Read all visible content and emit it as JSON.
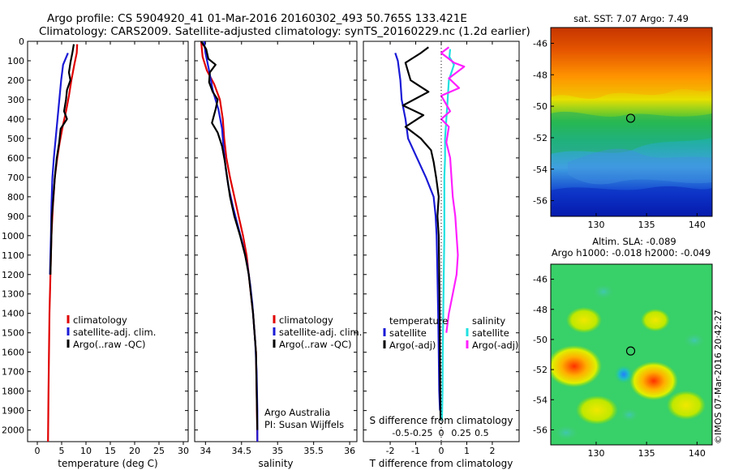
{
  "header": {
    "line1": "Argo profile: CS 5904920_41 01-Mar-2016 20160302_493 50.765S 133.421E",
    "line2": "Climatology: CARS2009. Satellite-adjusted climatology: synTS_20160229.nc (1.2d earlier)"
  },
  "credit": "©IMOS 07-Mar-2016 20:42:27",
  "colors": {
    "climatology": "#e00000",
    "satellite": "#1a1ad6",
    "argo": "#000000",
    "satellite_s": "#20e0e0",
    "argo_s": "#ff20ff"
  },
  "chart_data": [
    {
      "type": "line",
      "id": "temperature",
      "xlabel": "temperature (deg C)",
      "ylabel": "",
      "xlim": [
        -2,
        31
      ],
      "ylim": [
        2060,
        0
      ],
      "xticks": [
        0,
        5,
        10,
        15,
        20,
        25,
        30
      ],
      "yticks": [
        0,
        100,
        200,
        300,
        400,
        500,
        600,
        700,
        800,
        900,
        1000,
        1100,
        1200,
        1300,
        1400,
        1500,
        1600,
        1700,
        1800,
        1900,
        2000
      ],
      "legend": [
        "climatology",
        "satellite-adj. clim.",
        "Argo(..raw -QC)"
      ],
      "series": [
        {
          "name": "climatology",
          "color": "#e00000",
          "points": [
            [
              8.2,
              15
            ],
            [
              8.1,
              60
            ],
            [
              7.6,
              120
            ],
            [
              7.0,
              200
            ],
            [
              6.5,
              280
            ],
            [
              5.9,
              360
            ],
            [
              5.2,
              440
            ],
            [
              4.6,
              520
            ],
            [
              4.1,
              600
            ],
            [
              3.6,
              700
            ],
            [
              3.2,
              850
            ],
            [
              2.9,
              1000
            ],
            [
              2.7,
              1200
            ],
            [
              2.5,
              1400
            ],
            [
              2.4,
              1600
            ],
            [
              2.3,
              1800
            ],
            [
              2.2,
              2060
            ]
          ]
        },
        {
          "name": "satellite-adj. clim.",
          "color": "#1a1ad6",
          "points": [
            [
              6.3,
              60
            ],
            [
              5.3,
              120
            ],
            [
              4.9,
              200
            ],
            [
              4.6,
              280
            ],
            [
              4.3,
              360
            ],
            [
              4.0,
              440
            ],
            [
              3.7,
              520
            ],
            [
              3.4,
              600
            ],
            [
              3.1,
              700
            ],
            [
              2.9,
              850
            ],
            [
              2.8,
              1000
            ],
            [
              2.6,
              1200
            ]
          ]
        },
        {
          "name": "Argo(..raw -QC)",
          "color": "#000000",
          "points": [
            [
              7.5,
              15
            ],
            [
              7.2,
              60
            ],
            [
              6.8,
              110
            ],
            [
              6.5,
              160
            ],
            [
              6.8,
              200
            ],
            [
              6.1,
              250
            ],
            [
              5.9,
              300
            ],
            [
              5.5,
              360
            ],
            [
              6.1,
              400
            ],
            [
              4.8,
              450
            ],
            [
              4.5,
              520
            ],
            [
              4.0,
              600
            ],
            [
              3.6,
              700
            ],
            [
              3.3,
              800
            ],
            [
              3.0,
              900
            ],
            [
              2.9,
              1000
            ],
            [
              2.8,
              1100
            ],
            [
              2.7,
              1200
            ]
          ]
        }
      ]
    },
    {
      "type": "line",
      "id": "salinity",
      "xlabel": "salinity",
      "ylabel": "",
      "xlim": [
        33.85,
        36.1
      ],
      "ylim": [
        2060,
        0
      ],
      "xticks": [
        34,
        34.5,
        35,
        35.5,
        36
      ],
      "xticklabels": [
        "34",
        "34.5",
        "35",
        "35.5",
        "36"
      ],
      "legend": [
        "climatology",
        "satellite-adj. clim.",
        "Argo(..raw -QC)"
      ],
      "annotations": [
        "Argo Australia",
        "PI: Susan Wijffels"
      ],
      "series": [
        {
          "name": "climatology",
          "color": "#e00000",
          "points": [
            [
              33.94,
              0
            ],
            [
              33.96,
              80
            ],
            [
              34.02,
              150
            ],
            [
              34.12,
              220
            ],
            [
              34.2,
              300
            ],
            [
              34.24,
              400
            ],
            [
              34.26,
              500
            ],
            [
              34.29,
              600
            ],
            [
              34.34,
              700
            ],
            [
              34.4,
              800
            ],
            [
              34.46,
              900
            ],
            [
              34.52,
              1000
            ],
            [
              34.57,
              1100
            ],
            [
              34.6,
              1200
            ],
            [
              34.63,
              1300
            ],
            [
              34.66,
              1400
            ],
            [
              34.68,
              1500
            ],
            [
              34.7,
              1600
            ],
            [
              34.71,
              1800
            ],
            [
              34.72,
              2060
            ]
          ]
        },
        {
          "name": "satellite-adj. clim.",
          "color": "#1a1ad6",
          "points": [
            [
              33.98,
              0
            ],
            [
              34.0,
              60
            ],
            [
              34.05,
              150
            ],
            [
              34.1,
              250
            ],
            [
              34.18,
              350
            ],
            [
              34.23,
              450
            ],
            [
              34.25,
              550
            ],
            [
              34.28,
              650
            ],
            [
              34.32,
              750
            ],
            [
              34.38,
              850
            ],
            [
              34.45,
              950
            ],
            [
              34.52,
              1050
            ],
            [
              34.58,
              1150
            ],
            [
              34.62,
              1250
            ],
            [
              34.65,
              1350
            ],
            [
              34.67,
              1450
            ],
            [
              34.69,
              1550
            ],
            [
              34.71,
              1700
            ],
            [
              34.72,
              1900
            ],
            [
              34.72,
              2060
            ]
          ]
        },
        {
          "name": "Argo(..raw -QC)",
          "color": "#000000",
          "points": [
            [
              33.94,
              0
            ],
            [
              34.01,
              40
            ],
            [
              34.04,
              90
            ],
            [
              34.14,
              120
            ],
            [
              34.06,
              160
            ],
            [
              34.05,
              210
            ],
            [
              34.1,
              260
            ],
            [
              34.17,
              300
            ],
            [
              34.14,
              350
            ],
            [
              34.09,
              420
            ],
            [
              34.17,
              470
            ],
            [
              34.23,
              540
            ],
            [
              34.27,
              620
            ],
            [
              34.3,
              700
            ],
            [
              34.34,
              800
            ],
            [
              34.4,
              900
            ],
            [
              34.48,
              1000
            ],
            [
              34.55,
              1100
            ],
            [
              34.6,
              1200
            ],
            [
              34.63,
              1300
            ],
            [
              34.66,
              1400
            ],
            [
              34.68,
              1500
            ],
            [
              34.7,
              1600
            ],
            [
              34.71,
              1800
            ],
            [
              34.72,
              2000
            ]
          ]
        }
      ]
    },
    {
      "type": "line",
      "id": "difference",
      "xlabel": "T difference from climatology",
      "xlabel_top": "S difference from climatology",
      "xlim": [
        -3.05,
        3.05
      ],
      "ylim": [
        2060,
        0
      ],
      "xticks": [
        -2,
        -1,
        0,
        1,
        2
      ],
      "top_ticks": [
        "-0.5",
        "-0.25",
        "0",
        "0.25",
        "0.5"
      ],
      "legend_t": {
        "title": "temperature",
        "items": [
          "satellite",
          "Argo(-adj)"
        ]
      },
      "legend_s": {
        "title": "salinity",
        "items": [
          "satellite",
          "Argo(-adj)"
        ]
      },
      "series": [
        {
          "name": "temperature satellite",
          "color": "#1a1ad6",
          "points": [
            [
              -1.8,
              60
            ],
            [
              -1.7,
              100
            ],
            [
              -1.6,
              200
            ],
            [
              -1.55,
              300
            ],
            [
              -1.4,
              400
            ],
            [
              -1.3,
              500
            ],
            [
              -0.95,
              600
            ],
            [
              -0.6,
              700
            ],
            [
              -0.3,
              800
            ],
            [
              -0.22,
              900
            ],
            [
              -0.18,
              1000
            ],
            [
              -0.15,
              1200
            ],
            [
              -0.12,
              1400
            ],
            [
              -0.1,
              1600
            ],
            [
              -0.08,
              1800
            ],
            [
              -0.05,
              1900
            ]
          ]
        },
        {
          "name": "temperature Argo(-adj)",
          "color": "#000000",
          "points": [
            [
              -0.5,
              30
            ],
            [
              -0.8,
              60
            ],
            [
              -1.4,
              110
            ],
            [
              -1.2,
              200
            ],
            [
              -0.5,
              260
            ],
            [
              -1.5,
              330
            ],
            [
              -0.7,
              380
            ],
            [
              -1.4,
              440
            ],
            [
              -0.8,
              500
            ],
            [
              -0.4,
              560
            ],
            [
              -0.3,
              620
            ],
            [
              -0.2,
              700
            ],
            [
              -0.1,
              800
            ],
            [
              -0.15,
              900
            ],
            [
              -0.1,
              1000
            ],
            [
              -0.08,
              1200
            ],
            [
              -0.06,
              1400
            ],
            [
              -0.05,
              1600
            ],
            [
              -0.04,
              1800
            ],
            [
              -0.03,
              1950
            ]
          ]
        },
        {
          "name": "salinity satellite",
          "color": "#20e0e0",
          "points": [
            [
              0.35,
              40
            ],
            [
              0.32,
              80
            ],
            [
              0.5,
              120
            ],
            [
              0.3,
              200
            ],
            [
              0.25,
              300
            ],
            [
              0.2,
              400
            ],
            [
              0.15,
              500
            ],
            [
              0.15,
              600
            ],
            [
              0.12,
              700
            ],
            [
              0.12,
              800
            ],
            [
              0.12,
              900
            ],
            [
              0.12,
              1000
            ],
            [
              0.1,
              1200
            ],
            [
              0.08,
              1400
            ],
            [
              0.06,
              1600
            ],
            [
              0.05,
              1800
            ],
            [
              0.03,
              1950
            ]
          ]
        },
        {
          "name": "salinity Argo(-adj)",
          "color": "#ff20ff",
          "points": [
            [
              0.3,
              30
            ],
            [
              0.0,
              60
            ],
            [
              0.5,
              110
            ],
            [
              0.9,
              130
            ],
            [
              0.3,
              190
            ],
            [
              0.7,
              240
            ],
            [
              0.0,
              280
            ],
            [
              0.35,
              360
            ],
            [
              0.0,
              400
            ],
            [
              0.3,
              440
            ],
            [
              0.2,
              520
            ],
            [
              0.35,
              600
            ],
            [
              0.4,
              700
            ],
            [
              0.45,
              800
            ],
            [
              0.55,
              900
            ],
            [
              0.6,
              1000
            ],
            [
              0.65,
              1100
            ],
            [
              0.6,
              1200
            ],
            [
              0.45,
              1300
            ],
            [
              0.3,
              1400
            ],
            [
              0.2,
              1500
            ]
          ]
        }
      ]
    },
    {
      "type": "heatmap",
      "id": "sst_map",
      "title": "sat. SST: 7.07 Argo: 7.49",
      "xlim": [
        125.5,
        141.5
      ],
      "ylim": [
        -57,
        -45
      ],
      "xticks": [
        130,
        135,
        140
      ],
      "yticks": [
        -46,
        -48,
        -50,
        -52,
        -54,
        -56
      ],
      "marker": {
        "lon": 133.421,
        "lat": -50.765
      }
    },
    {
      "type": "heatmap",
      "id": "sla_map",
      "title": "Altim. SLA: -0.089",
      "subtitle": "Argo h1000: -0.018 h2000: -0.049",
      "xlim": [
        125.5,
        141.5
      ],
      "ylim": [
        -57,
        -45
      ],
      "xticks": [
        130,
        135,
        140
      ],
      "yticks": [
        -46,
        -48,
        -50,
        -52,
        -54,
        -56
      ],
      "marker": {
        "lon": 133.421,
        "lat": -50.765
      }
    }
  ]
}
